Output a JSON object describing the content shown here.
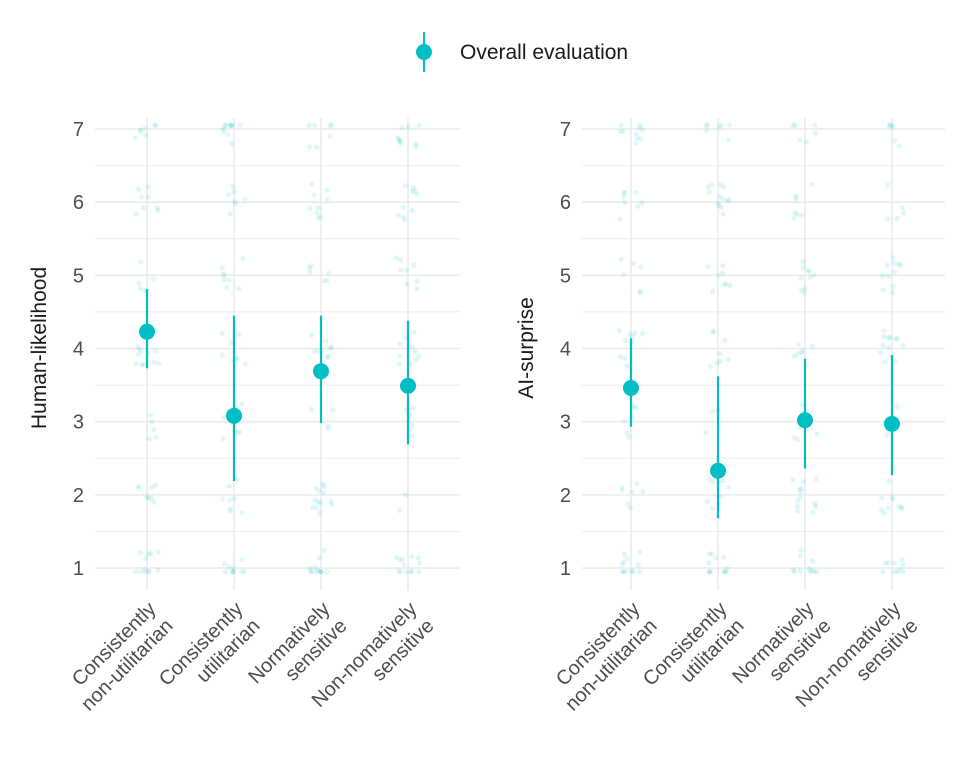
{
  "legend": {
    "label": "Overall evaluation"
  },
  "colors": {
    "point": "#00BFC4",
    "grid": "#EBEBEB"
  },
  "chart_data": [
    {
      "type": "scatter",
      "ylabel": "Human-likelihood",
      "ylim": [
        0.7,
        7.15
      ],
      "yticks": [
        1,
        2,
        3,
        4,
        5,
        6,
        7
      ],
      "grid": true,
      "categories": [
        [
          "Consistently",
          "non-utilitarian"
        ],
        [
          "Consistently",
          "utilitarian"
        ],
        [
          "Normatively",
          "sensitive"
        ],
        [
          "Non-nomatively",
          "sensitive"
        ]
      ],
      "series": [
        {
          "name": "Overall evaluation",
          "mean": [
            4.23,
            3.08,
            3.69,
            3.49
          ],
          "lower": [
            3.73,
            2.19,
            2.98,
            2.69
          ],
          "upper": [
            4.81,
            4.45,
            4.45,
            4.38
          ]
        }
      ]
    },
    {
      "type": "scatter",
      "ylabel": "AI-surprise",
      "ylim": [
        0.7,
        7.15
      ],
      "yticks": [
        1,
        2,
        3,
        4,
        5,
        6,
        7
      ],
      "grid": true,
      "categories": [
        [
          "Consistently",
          "non-utilitarian"
        ],
        [
          "Consistently",
          "utilitarian"
        ],
        [
          "Normatively",
          "sensitive"
        ],
        [
          "Non-nomatively",
          "sensitive"
        ]
      ],
      "series": [
        {
          "name": "Overall evaluation",
          "mean": [
            3.46,
            2.33,
            3.02,
            2.97
          ],
          "lower": [
            2.93,
            1.68,
            2.36,
            2.27
          ],
          "upper": [
            4.14,
            3.62,
            3.86,
            3.91
          ]
        }
      ]
    }
  ]
}
